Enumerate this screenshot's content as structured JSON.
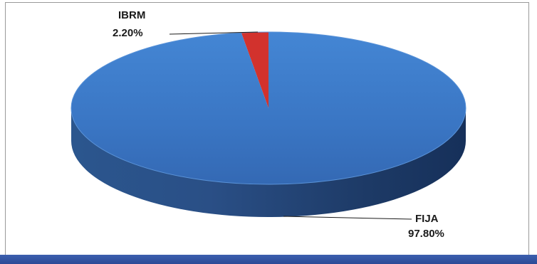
{
  "chart_data": {
    "type": "pie",
    "style": "3d",
    "slices": [
      {
        "label": "IBRM",
        "value": 2.2,
        "value_label": "2.20%",
        "color": "#d2322d"
      },
      {
        "label": "FIJA",
        "value": 97.8,
        "value_label": "97.80%",
        "color": "#3a76c4"
      }
    ],
    "legend": "none"
  }
}
